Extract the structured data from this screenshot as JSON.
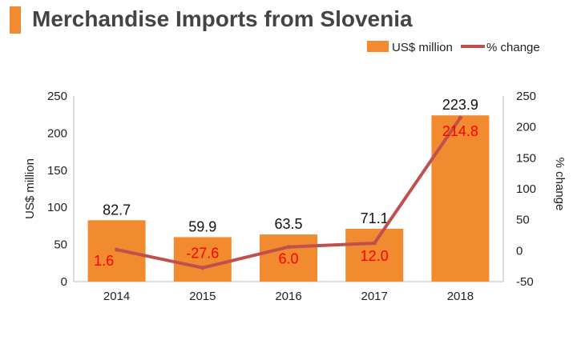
{
  "title": "Merchandise Imports from Slovenia",
  "colors": {
    "bar": "#f28a2f",
    "line": "#c0504d",
    "pct_label": "#ff0000",
    "title_accent": "#f28a2f"
  },
  "chart_data": {
    "type": "bar",
    "title": "Merchandise Imports from Slovenia",
    "categories": [
      "2014",
      "2015",
      "2016",
      "2017",
      "2018"
    ],
    "series": [
      {
        "name": "US$ million",
        "type": "bar",
        "axis": "left",
        "values": [
          82.7,
          59.9,
          63.5,
          71.1,
          223.9
        ],
        "labels": [
          "82.7",
          "59.9",
          "63.5",
          "71.1",
          "223.9"
        ]
      },
      {
        "name": "% change",
        "type": "line",
        "axis": "right",
        "values": [
          1.6,
          -27.6,
          6.0,
          12.0,
          214.8
        ],
        "labels": [
          "1.6",
          "-27.6",
          "6.0",
          "12.0",
          "214.8"
        ]
      }
    ],
    "ylabel": "US$ million",
    "ylabel_right": "% change",
    "ylim": [
      0,
      250
    ],
    "ylim_right": [
      -50,
      250
    ],
    "yticks": [
      "0",
      "50",
      "100",
      "150",
      "200",
      "250"
    ],
    "yticks_right": [
      "-50",
      "0",
      "50",
      "100",
      "150",
      "200",
      "250"
    ],
    "legend_position": "top-right",
    "grid": false
  }
}
